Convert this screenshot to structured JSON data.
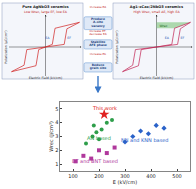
{
  "panels": [
    {
      "title": "Pure AgNbO3 ceramics",
      "subtitle": "Low Wrec, large EF, low EA",
      "x_label": "Electric Field (kV/cm)",
      "y_label": "Polarization (μC/cm²)",
      "labels": [
        "EF",
        "EA"
      ]
    },
    {
      "title": "Ag1-xCax/2NbO3 ceramics",
      "subtitle": "High Wrec, small ΔE, high EA",
      "x_label": "Electric Field (kV/cm)",
      "y_label": "Polarization (μC/cm²)",
      "labels": [
        "EF",
        "EA",
        "Wrec"
      ]
    }
  ],
  "flow": {
    "steps": [
      "Produce A-site vacancy",
      "Stabilize AFE phase",
      "Reduce grain size"
    ],
    "effects": [
      "Increase EA",
      "Increase EF, decrease EA",
      "Increase Eb"
    ]
  },
  "chart_data": {
    "type": "scatter",
    "x_label": "E (kV/cm)",
    "y_label": "Wrec (J/cm³)",
    "xlim": [
      50,
      550
    ],
    "xticks": [
      100,
      200,
      300,
      400,
      500
    ],
    "ylim": [
      0.5,
      5.5
    ],
    "yticks": [
      1,
      2,
      3,
      4,
      5
    ],
    "series": [
      {
        "name": "AN based",
        "color": "#2e9e4a",
        "marker": "circle",
        "x": [
          150,
          175,
          190,
          210,
          230,
          250,
          200,
          180
        ],
        "values": [
          2.5,
          3.0,
          3.3,
          3.5,
          4.0,
          4.2,
          2.8,
          3.8
        ]
      },
      {
        "name": "This work",
        "color": "#e02020",
        "marker": "star",
        "x": [
          220
        ],
        "values": [
          4.6
        ]
      },
      {
        "name": "NN and KNN based",
        "color": "#2a62c9",
        "marker": "diamond",
        "x": [
          300,
          330,
          360,
          390,
          420,
          450
        ],
        "values": [
          2.6,
          3.0,
          3.4,
          3.2,
          3.8,
          3.6
        ]
      },
      {
        "name": "BT and BNT based",
        "color": "#b0389c",
        "marker": "square",
        "x": [
          110,
          140,
          170,
          200,
          230,
          260
        ],
        "values": [
          1.2,
          1.6,
          1.4,
          2.0,
          1.8,
          2.2
        ]
      }
    ],
    "grid": false
  }
}
